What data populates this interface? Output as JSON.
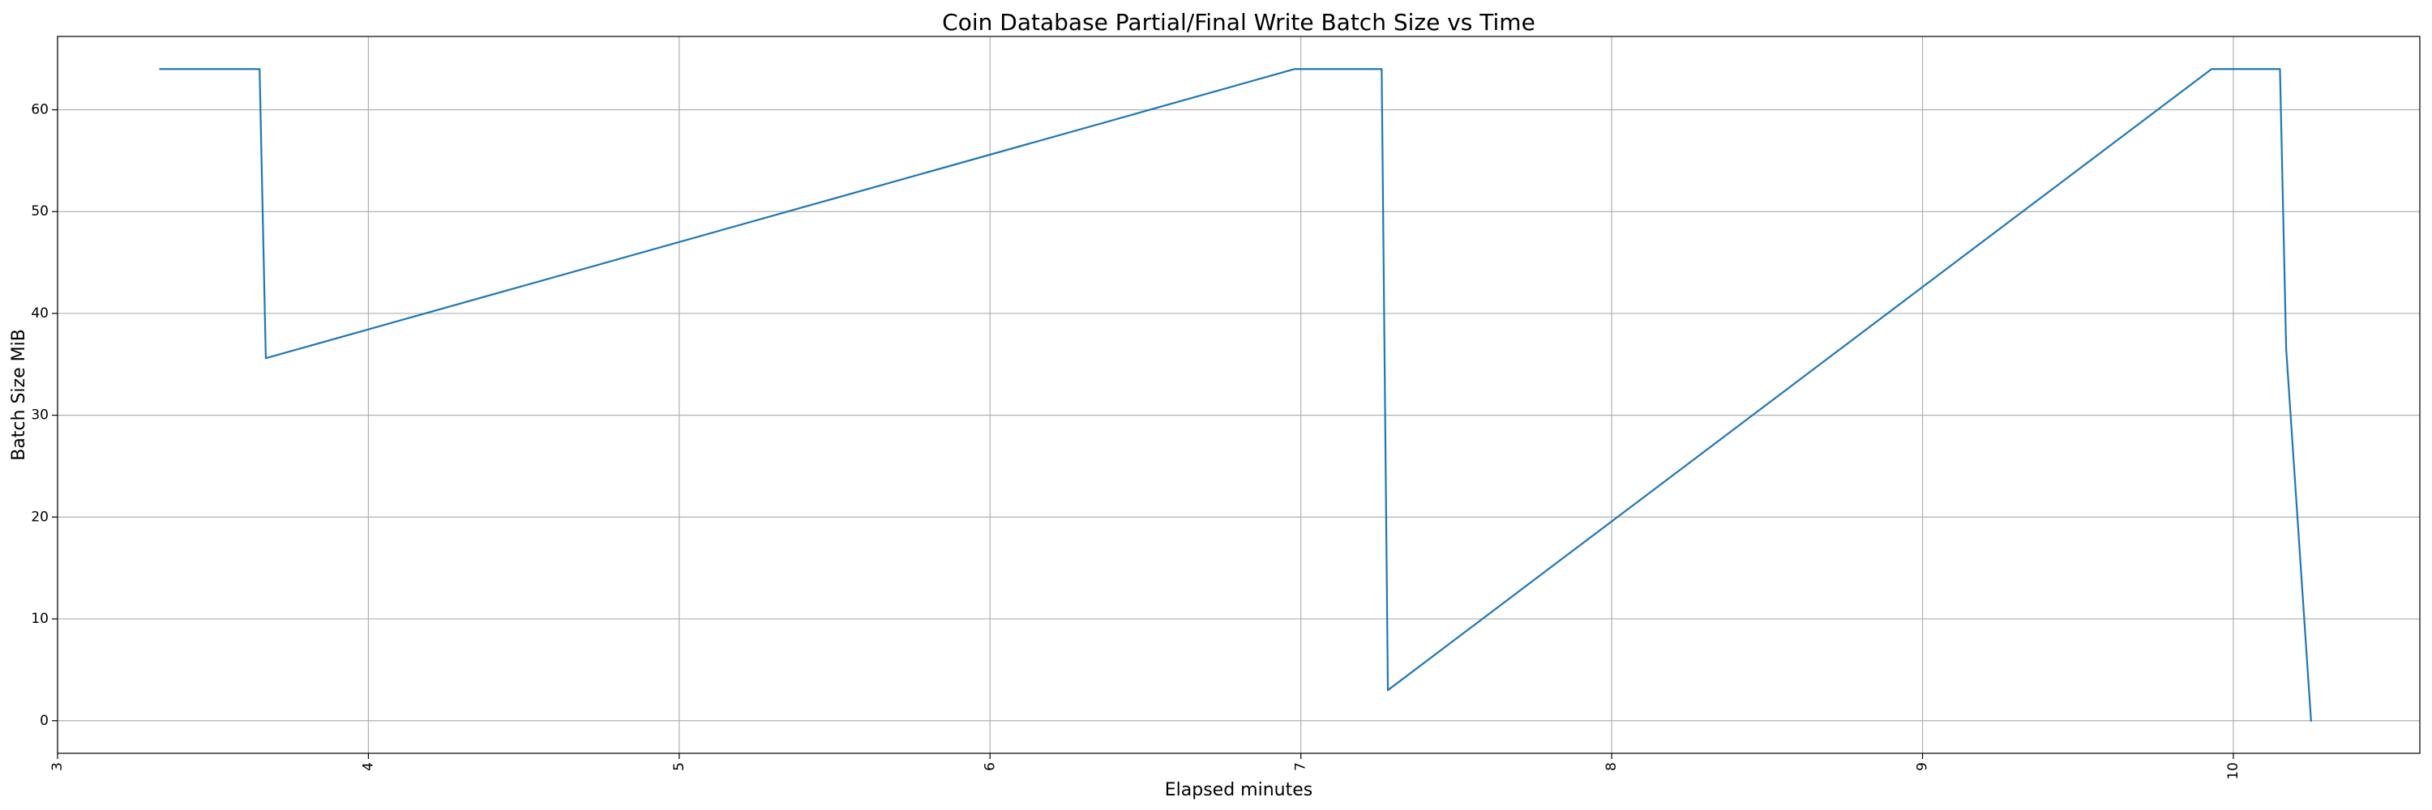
{
  "chart_data": {
    "type": "line",
    "title": "Coin Database Partial/Final Write Batch Size vs Time",
    "xlabel": "Elapsed minutes",
    "ylabel": "Batch Size MiB",
    "xlim": [
      3.0,
      10.6
    ],
    "ylim": [
      -3.2,
      67.2
    ],
    "xticks": [
      3,
      4,
      5,
      6,
      7,
      8,
      9,
      10
    ],
    "yticks": [
      0,
      10,
      20,
      30,
      40,
      50,
      60
    ],
    "grid": true,
    "colors": {
      "line": "#1f77b4",
      "grid": "#b0b0b0",
      "axes": "#000000"
    },
    "series": [
      {
        "x": [
          3.33,
          3.65,
          3.67,
          6.98,
          7.26,
          7.28,
          9.93,
          10.15,
          10.17,
          10.25
        ],
        "y": [
          64.0,
          64.0,
          35.6,
          64.0,
          64.0,
          3.0,
          64.0,
          64.0,
          36.5,
          0.0
        ]
      }
    ]
  }
}
